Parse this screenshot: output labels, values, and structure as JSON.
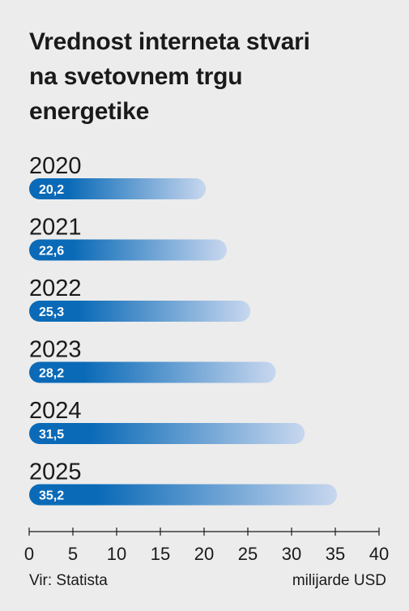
{
  "title_lines": [
    "Vrednost interneta stvari",
    "na svetovnem trgu",
    "energetike"
  ],
  "source": "Vir: Statista",
  "unit": "milijarde USD",
  "colors": {
    "bar_start": "#0a6ab7",
    "bar_end": "#c8d7ef",
    "label": "#ffffff",
    "axis": "#1a1a1a",
    "background": "#ececec"
  },
  "chart_data": {
    "type": "bar",
    "orientation": "horizontal",
    "title": "Vrednost interneta stvari na svetovnem trgu energetike",
    "categories": [
      "2020",
      "2021",
      "2022",
      "2023",
      "2024",
      "2025"
    ],
    "values": [
      20.2,
      22.6,
      25.3,
      28.2,
      31.5,
      35.2
    ],
    "value_labels": [
      "20,2",
      "22,6",
      "25,3",
      "28,2",
      "31,5",
      "35,2"
    ],
    "xlim": [
      0,
      40
    ],
    "xticks": [
      0,
      5,
      10,
      15,
      20,
      25,
      30,
      35,
      40
    ],
    "xlabel": "milijarde USD",
    "grid": false,
    "legend": "none"
  }
}
